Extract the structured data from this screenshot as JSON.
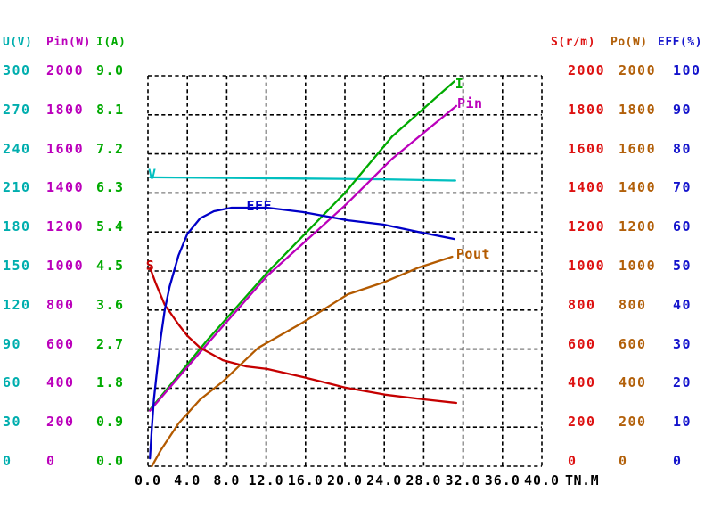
{
  "axes": {
    "left": {
      "columns": [
        {
          "header": "U(V)",
          "color": "#00AEAE",
          "values": [
            "300",
            "270",
            "240",
            "210",
            "180",
            "150",
            "120",
            "90",
            "60",
            "30",
            "0"
          ]
        },
        {
          "header": "Pin(W)",
          "color": "#BB00BB",
          "values": [
            "2000",
            "1800",
            "1600",
            "1400",
            "1200",
            "1000",
            "800",
            "600",
            "400",
            "200",
            "0"
          ]
        },
        {
          "header": "I(A)",
          "color": "#00AA00",
          "values": [
            "9.0",
            "8.1",
            "7.2",
            "6.3",
            "5.4",
            "4.5",
            "3.6",
            "2.7",
            "1.8",
            "0.9",
            "0.0"
          ]
        }
      ]
    },
    "right": {
      "columns": [
        {
          "header": "S(r/m)",
          "color": "#DD1111",
          "values": [
            "2000",
            "1800",
            "1600",
            "1400",
            "1200",
            "1000",
            "800",
            "600",
            "400",
            "200",
            "0"
          ]
        },
        {
          "header": "Po(W)",
          "color": "#B2600A",
          "values": [
            "2000",
            "1800",
            "1600",
            "1400",
            "1200",
            "1000",
            "800",
            "600",
            "400",
            "200",
            "0"
          ]
        },
        {
          "header": "EFF(%)",
          "color": "#1414CC",
          "values": [
            "100",
            "90",
            "80",
            "70",
            "60",
            "50",
            "40",
            "30",
            "20",
            "10",
            "0"
          ]
        }
      ]
    },
    "x": {
      "tick_labels": [
        "0.0",
        "4.0",
        "8.0",
        "12.0",
        "16.0",
        "20.0",
        "24.0",
        "28.0",
        "32.0",
        "36.0",
        "40.0"
      ],
      "unit_label": "TN.M",
      "min": 0,
      "max": 40
    }
  },
  "chart_data": {
    "type": "line",
    "xlabel": "TN.M",
    "x_range": [
      0,
      40
    ],
    "grid": "dashed",
    "legend_position": "inline-curve-labels",
    "y_axes": {
      "U": [
        0,
        300
      ],
      "Pin": [
        0,
        2000
      ],
      "I": [
        0,
        9
      ],
      "S": [
        0,
        2000
      ],
      "Po": [
        0,
        2000
      ],
      "EFF": [
        0,
        100
      ]
    },
    "series": [
      {
        "name": "V",
        "axis": "U",
        "axis_max": 300,
        "color": "#00BFBF",
        "points": [
          [
            0.2,
            222
          ],
          [
            8,
            221.5
          ],
          [
            16,
            221
          ],
          [
            24,
            220.5
          ],
          [
            31.2,
            219.5
          ]
        ],
        "label": {
          "text": "V",
          "t": 0.0,
          "v": 221
        }
      },
      {
        "name": "I",
        "axis": "I",
        "axis_max": 9,
        "color": "#00AA00",
        "points": [
          [
            0.2,
            1.3
          ],
          [
            6,
            2.9
          ],
          [
            12.1,
            4.46
          ],
          [
            20,
            6.3
          ],
          [
            24.8,
            7.6
          ],
          [
            31.1,
            8.87
          ]
        ],
        "label": {
          "text": "I",
          "t": 31.2,
          "v": 8.71
        }
      },
      {
        "name": "Pin",
        "axis": "Pin",
        "axis_max": 2000,
        "color": "#BB00BB",
        "points": [
          [
            0.2,
            285
          ],
          [
            6,
            625
          ],
          [
            12.1,
            975
          ],
          [
            20,
            1335
          ],
          [
            24.8,
            1575
          ],
          [
            31.3,
            1845
          ]
        ],
        "label": {
          "text": "Pin",
          "t": 31.4,
          "v": 1836
        }
      },
      {
        "name": "S",
        "axis": "S",
        "axis_max": 2000,
        "color": "#C50000",
        "points": [
          [
            0.2,
            1018
          ],
          [
            0.8,
            936
          ],
          [
            1.7,
            827
          ],
          [
            3.1,
            726
          ],
          [
            4,
            668
          ],
          [
            5.3,
            607
          ],
          [
            7.6,
            543
          ],
          [
            10,
            511
          ],
          [
            12.1,
            498
          ],
          [
            15.9,
            455
          ],
          [
            20,
            403
          ],
          [
            24.1,
            366
          ],
          [
            28.1,
            342
          ],
          [
            31.3,
            324
          ]
        ],
        "label": {
          "text": "S",
          "t": -0.2,
          "v": 1005
        }
      },
      {
        "name": "EFF",
        "axis": "EFF",
        "axis_max": 100,
        "color": "#0000C8",
        "points": [
          [
            0.2,
            2
          ],
          [
            0.4,
            10
          ],
          [
            0.6,
            17
          ],
          [
            0.9,
            24
          ],
          [
            1.3,
            33
          ],
          [
            1.7,
            40
          ],
          [
            2.2,
            46
          ],
          [
            3.1,
            54
          ],
          [
            4,
            59.5
          ],
          [
            5.3,
            63.5
          ],
          [
            6.7,
            65.3
          ],
          [
            8.5,
            66.2
          ],
          [
            12.1,
            66.2
          ],
          [
            15.7,
            65.1
          ],
          [
            20.3,
            63
          ],
          [
            23.9,
            61.9
          ],
          [
            27.5,
            60
          ],
          [
            31.1,
            58.2
          ]
        ],
        "label": {
          "text": "EFF",
          "t": 10.0,
          "v": 65.5
        }
      },
      {
        "name": "Pout",
        "axis": "Po",
        "axis_max": 2000,
        "color": "#B35A00",
        "points": [
          [
            0.4,
            0
          ],
          [
            1.3,
            82
          ],
          [
            3.1,
            219
          ],
          [
            5.3,
            342
          ],
          [
            7.6,
            434
          ],
          [
            11.2,
            607
          ],
          [
            15.7,
            735
          ],
          [
            20.3,
            881
          ],
          [
            23.9,
            941
          ],
          [
            27.5,
            1018
          ],
          [
            30.9,
            1073
          ]
        ],
        "label": {
          "text": "Pout",
          "t": 31.3,
          "v": 1064
        }
      }
    ]
  }
}
